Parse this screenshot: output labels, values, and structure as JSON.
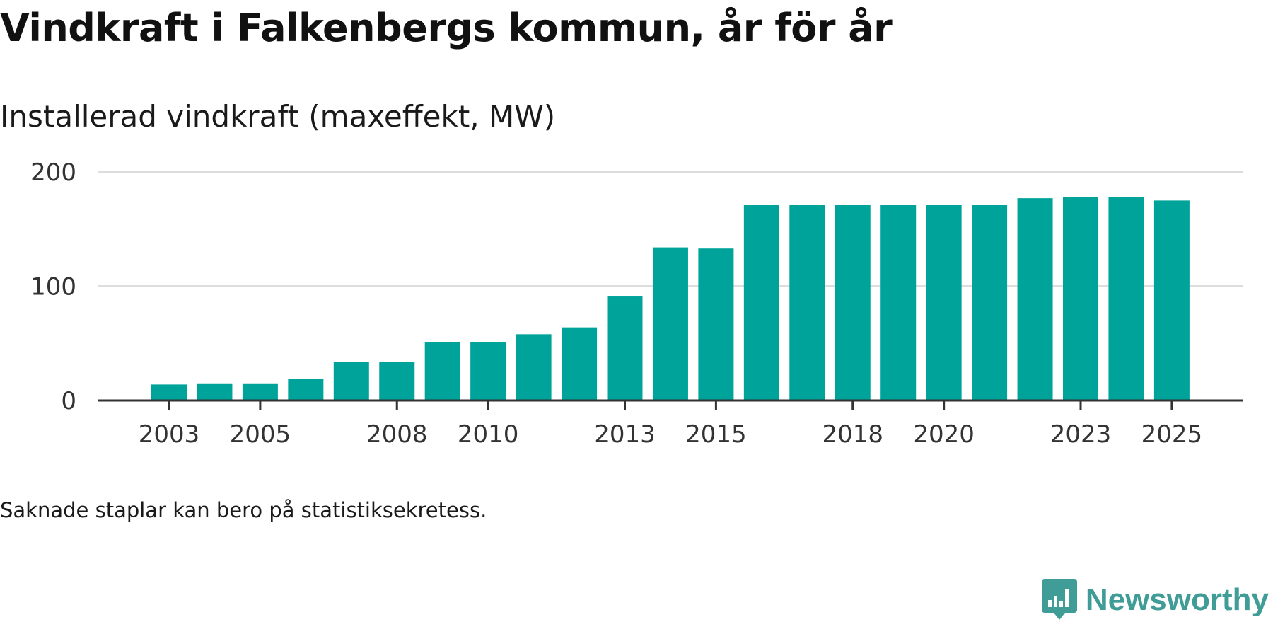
{
  "header": {
    "title": "Vindkraft i Falkenbergs kommun, år för år",
    "subtitle": "Installerad vindkraft (maxeffekt, MW)"
  },
  "footer": {
    "note": "Saknade staplar kan bero på statistiksekretess.",
    "brand_name": "Newsworthy"
  },
  "colors": {
    "bar": "#00a39a",
    "grid": "#dddddd",
    "axis": "#333333",
    "brand": "#3f9c96"
  },
  "chart_data": {
    "type": "bar",
    "title": "Vindkraft i Falkenbergs kommun, år för år",
    "subtitle": "Installerad vindkraft (maxeffekt, MW)",
    "xlabel": "",
    "ylabel": "",
    "categories": [
      "2003",
      "2004",
      "2005",
      "2006",
      "2007",
      "2008",
      "2009",
      "2010",
      "2011",
      "2012",
      "2013",
      "2014",
      "2015",
      "2016",
      "2017",
      "2018",
      "2019",
      "2020",
      "2021",
      "2022",
      "2023",
      "2024",
      "2025"
    ],
    "values": [
      14,
      15,
      15,
      19,
      34,
      34,
      51,
      51,
      58,
      64,
      91,
      134,
      133,
      171,
      171,
      171,
      171,
      171,
      171,
      177,
      178,
      178,
      175
    ],
    "x_tick_labels": [
      "2003",
      "2005",
      "2008",
      "2010",
      "2013",
      "2015",
      "2018",
      "2020",
      "2023",
      "2025"
    ],
    "y_ticks": [
      0,
      100,
      200
    ],
    "ylim": [
      0,
      200
    ],
    "grid": true
  }
}
